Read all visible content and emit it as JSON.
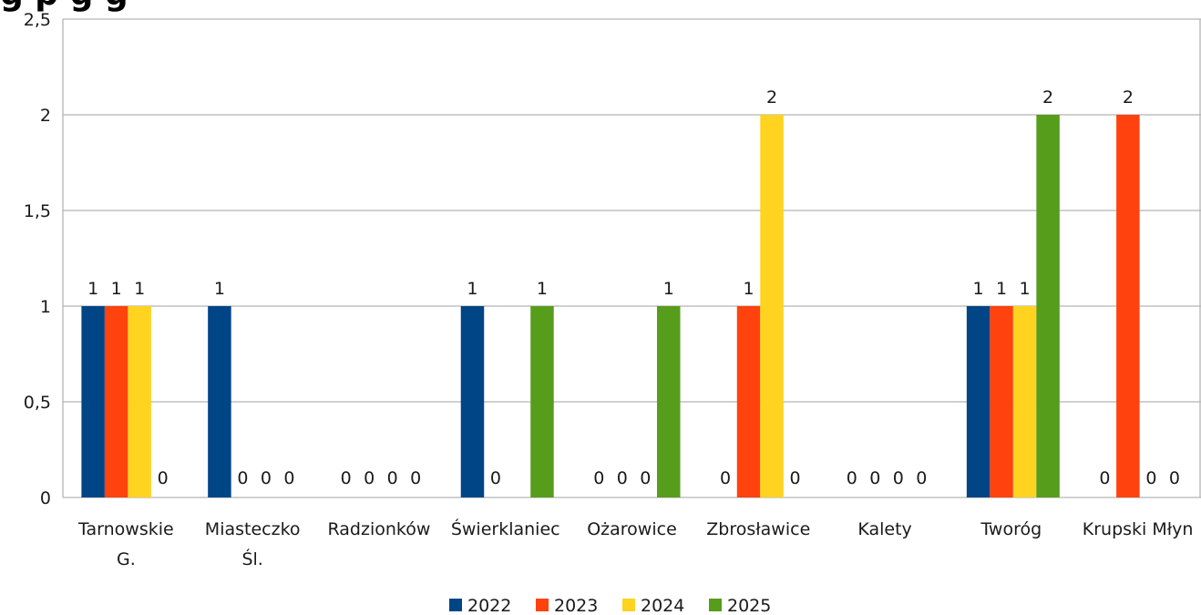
{
  "title_fragment": "g p                          g   g",
  "chart_data": {
    "type": "bar",
    "categories": [
      [
        "Tarnowskie",
        "G."
      ],
      [
        "Miasteczko",
        "Śl."
      ],
      [
        "Radzionków"
      ],
      [
        "Świerklaniec"
      ],
      [
        "Ożarowice"
      ],
      [
        "Zbrosławice"
      ],
      [
        "Kalety"
      ],
      [
        "Tworóg"
      ],
      [
        "Krupski Młyn"
      ]
    ],
    "series": [
      {
        "name": "2022",
        "color": "#004586",
        "values": [
          1,
          1,
          0,
          1,
          0,
          0,
          0,
          1,
          0
        ]
      },
      {
        "name": "2023",
        "color": "#ff420e",
        "values": [
          1,
          0,
          0,
          0,
          0,
          1,
          0,
          1,
          2
        ]
      },
      {
        "name": "2024",
        "color": "#ffd320",
        "values": [
          1,
          0,
          0,
          null,
          0,
          2,
          0,
          1,
          0
        ]
      },
      {
        "name": "2025",
        "color": "#579d1c",
        "values": [
          0,
          0,
          0,
          1,
          1,
          0,
          0,
          2,
          0
        ]
      }
    ],
    "y_ticks": [
      "0",
      "0,5",
      "1",
      "1,5",
      "2",
      "2,5"
    ],
    "ylim": [
      0,
      2.5
    ],
    "grid": true,
    "legend_position": "bottom"
  }
}
